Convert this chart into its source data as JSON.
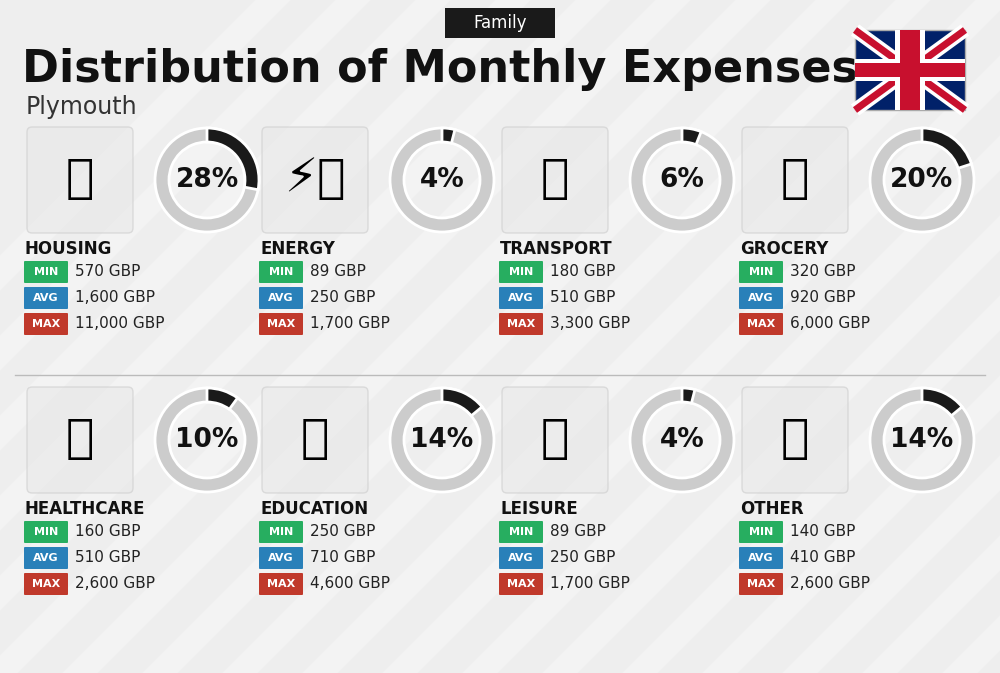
{
  "title": "Distribution of Monthly Expenses",
  "subtitle": "Plymouth",
  "label_family": "Family",
  "bg_color": "#eeeeee",
  "categories": [
    {
      "name": "HOUSING",
      "pct": 28,
      "min": "570 GBP",
      "avg": "1,600 GBP",
      "max": "11,000 GBP",
      "row": 0,
      "col": 0
    },
    {
      "name": "ENERGY",
      "pct": 4,
      "min": "89 GBP",
      "avg": "250 GBP",
      "max": "1,700 GBP",
      "row": 0,
      "col": 1
    },
    {
      "name": "TRANSPORT",
      "pct": 6,
      "min": "180 GBP",
      "avg": "510 GBP",
      "max": "3,300 GBP",
      "row": 0,
      "col": 2
    },
    {
      "name": "GROCERY",
      "pct": 20,
      "min": "320 GBP",
      "avg": "920 GBP",
      "max": "6,000 GBP",
      "row": 0,
      "col": 3
    },
    {
      "name": "HEALTHCARE",
      "pct": 10,
      "min": "160 GBP",
      "avg": "510 GBP",
      "max": "2,600 GBP",
      "row": 1,
      "col": 0
    },
    {
      "name": "EDUCATION",
      "pct": 14,
      "min": "250 GBP",
      "avg": "710 GBP",
      "max": "4,600 GBP",
      "row": 1,
      "col": 1
    },
    {
      "name": "LEISURE",
      "pct": 4,
      "min": "89 GBP",
      "avg": "250 GBP",
      "max": "1,700 GBP",
      "row": 1,
      "col": 2
    },
    {
      "name": "OTHER",
      "pct": 14,
      "min": "140 GBP",
      "avg": "410 GBP",
      "max": "2,600 GBP",
      "row": 1,
      "col": 3
    }
  ],
  "min_color": "#27ae60",
  "avg_color": "#2980b9",
  "max_color": "#c0392b",
  "arc_dark": "#1a1a1a",
  "arc_light": "#cccccc",
  "title_fontsize": 32,
  "subtitle_fontsize": 17,
  "family_fontsize": 12,
  "pct_fontsize": 19,
  "cat_fontsize": 12,
  "val_fontsize": 11,
  "badge_fontsize": 8
}
